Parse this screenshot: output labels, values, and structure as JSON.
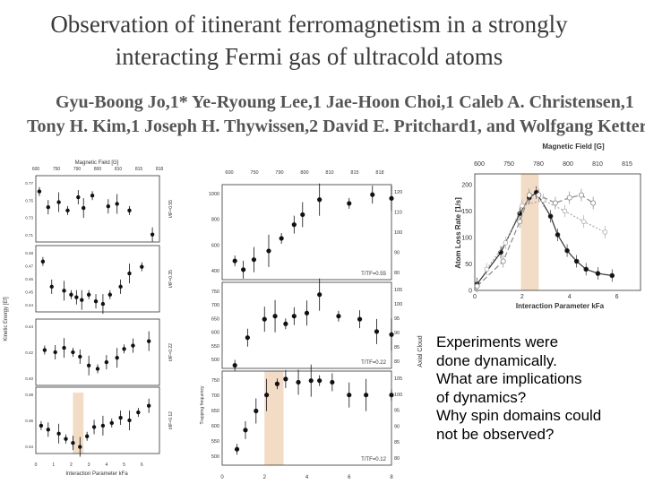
{
  "paper": {
    "title_line1": "Observation of itinerant ferromagnetism in a strongly",
    "title_line2": "interacting Fermi gas of ultracold atoms",
    "authors_line1": "Gyu-Boong Jo,1* Ye-Ryoung Lee,1 Jae-Hoon Choi,1 Caleb A. Christensen,1",
    "authors_line2": "Tony H. Kim,1 Joseph H. Thywissen,2 David E. Pritchard1, and Wolfgang Ketterle,1"
  },
  "notes": {
    "lines": [
      "Experiments were",
      "done dynamically.",
      "What are implications",
      "of dynamics?",
      "Why spin domains could",
      "not be observed?"
    ]
  },
  "colors": {
    "shade": "#f3dcc5",
    "marker": "#111111"
  },
  "chart_data": [
    {
      "type": "scatter",
      "name": "kinetic-energy-panels",
      "top_axis_label": "Magnetic Field [G]",
      "top_ticks": [
        "600",
        "750",
        "790",
        "800",
        "810",
        "815",
        "818"
      ],
      "ylabel": "Kinetic Energy [Ef]",
      "xlabel": "Interaction Parameter kFa",
      "x_ticks": [
        "0",
        "1",
        "2",
        "3",
        "4",
        "5",
        "6"
      ],
      "xlim": [
        0,
        7
      ],
      "panels": [
        {
          "label": "t/tF=0.55",
          "y_ticks": [
            "0.77",
            "0.75",
            "0.73",
            "0.71"
          ],
          "ylim": [
            0.7,
            0.78
          ],
          "x": [
            0.2,
            0.7,
            1.3,
            1.8,
            2.4,
            2.7,
            3.2,
            4.1,
            4.6,
            5.3,
            6.6
          ],
          "y": [
            0.761,
            0.742,
            0.748,
            0.738,
            0.754,
            0.741,
            0.756,
            0.743,
            0.746,
            0.738,
            0.709
          ]
        },
        {
          "label": "t/tF=0.35",
          "y_ticks": [
            "0.48",
            "0.47",
            "0.46",
            "0.45",
            "0.44"
          ],
          "ylim": [
            0.436,
            0.486
          ],
          "x": [
            0.4,
            0.9,
            1.6,
            2.0,
            2.3,
            2.6,
            3.0,
            3.4,
            3.8,
            4.2,
            4.8,
            5.3,
            6.0
          ],
          "y": [
            0.474,
            0.455,
            0.452,
            0.449,
            0.447,
            0.445,
            0.449,
            0.444,
            0.442,
            0.449,
            0.455,
            0.465,
            0.47
          ]
        },
        {
          "label": "t/tF=0.22",
          "y_ticks": [
            "0.44",
            "0.42",
            "0.40"
          ],
          "ylim": [
            0.39,
            0.45
          ],
          "x": [
            0.5,
            1.1,
            1.6,
            2.1,
            2.5,
            3.0,
            3.5,
            4.0,
            4.6,
            5.0,
            5.5,
            6.4
          ],
          "y": [
            0.422,
            0.42,
            0.424,
            0.42,
            0.416,
            0.408,
            0.405,
            0.411,
            0.415,
            0.423,
            0.426,
            0.43
          ]
        },
        {
          "label": "t/tF=0.12",
          "y_ticks": [
            "0.38",
            "0.36",
            "0.34"
          ],
          "ylim": [
            0.335,
            0.385
          ],
          "x": [
            0.3,
            0.7,
            1.3,
            1.7,
            2.1,
            2.5,
            2.9,
            3.3,
            3.8,
            4.3,
            4.8,
            5.3,
            5.8,
            6.4
          ],
          "y": [
            0.356,
            0.353,
            0.35,
            0.346,
            0.343,
            0.34,
            0.348,
            0.355,
            0.356,
            0.358,
            0.362,
            0.36,
            0.366,
            0.371
          ]
        }
      ]
    },
    {
      "type": "scatter",
      "name": "axial-cloud-panels",
      "top_ticks": [
        "600",
        "750",
        "790",
        "800",
        "810",
        "815",
        "818"
      ],
      "ylabel_left": "Trapping frequency",
      "ylabel_right": "Axial Cloud",
      "x_ticks": [
        "0",
        "2",
        "4",
        "6",
        "8"
      ],
      "xlim": [
        0,
        8
      ],
      "panels": [
        {
          "label": "T/TF=0.55",
          "left_ticks": [
            "1000",
            "800",
            "600",
            "400"
          ],
          "right_ticks": [
            "120",
            "110",
            "100",
            "90",
            "80"
          ],
          "ylim": [
            320,
            1080
          ],
          "x": [
            0.6,
            1.0,
            1.5,
            2.2,
            2.8,
            3.4,
            3.8,
            4.6,
            6.0,
            7.1,
            8.0
          ],
          "y": [
            470,
            400,
            480,
            550,
            650,
            760,
            840,
            960,
            930,
            1000,
            970
          ]
        },
        {
          "label": "T/TF=0.22",
          "left_ticks": [
            "750",
            "700",
            "650",
            "600",
            "550",
            "500"
          ],
          "right_ticks": [
            "105",
            "100",
            "95",
            "90",
            "85",
            "80"
          ],
          "ylim": [
            480,
            760
          ],
          "x": [
            0.6,
            1.2,
            2.0,
            2.5,
            3.0,
            3.4,
            4.0,
            4.6,
            5.5,
            6.5,
            7.3,
            8.0
          ],
          "y": [
            490,
            580,
            640,
            650,
            625,
            650,
            660,
            720,
            650,
            640,
            600,
            590
          ]
        },
        {
          "label": "T/TF=0.12",
          "left_ticks": [
            "750",
            "700",
            "650",
            "600",
            "550",
            "500"
          ],
          "right_ticks": [
            "105",
            "100",
            "95",
            "90",
            "85",
            "80"
          ],
          "ylim": [
            480,
            775
          ],
          "x": [
            0.7,
            1.1,
            1.6,
            2.1,
            2.6,
            3.0,
            3.6,
            4.2,
            4.6,
            5.2,
            6.0,
            6.8,
            8.0
          ],
          "y": [
            530,
            590,
            650,
            700,
            735,
            750,
            740,
            745,
            745,
            740,
            700,
            700,
            700
          ]
        }
      ]
    },
    {
      "type": "line",
      "name": "atom-loss-rate",
      "top_axis_label": "Magnetic Field [G]",
      "top_ticks": [
        "600",
        "750",
        "780",
        "800",
        "810",
        "815"
      ],
      "xlabel": "Interaction Parameter kFa",
      "ylabel": "Atom Loss Rate [1/s]",
      "x_ticks": [
        "0",
        "2",
        "4",
        "6"
      ],
      "y_ticks": [
        "0",
        "50",
        "100",
        "150",
        "200"
      ],
      "xlim": [
        0,
        7
      ],
      "ylim": [
        0,
        220
      ],
      "series": [
        {
          "x": [
            0.1,
            1.1,
            1.9,
            2.3,
            2.6,
            3.2,
            3.5,
            3.9,
            4.3,
            4.7,
            5.2,
            5.8
          ],
          "y": [
            12,
            72,
            145,
            175,
            185,
            140,
            105,
            75,
            55,
            40,
            32,
            28
          ]
        },
        {
          "x": [
            0.1,
            1.2,
            1.9,
            2.3,
            2.7,
            3.4,
            4.0,
            4.5,
            5.0
          ],
          "y": [
            8,
            55,
            130,
            180,
            180,
            165,
            175,
            180,
            165
          ]
        },
        {
          "x": [
            0.5,
            1.3,
            2.0,
            2.9,
            3.8,
            4.6,
            5.5
          ],
          "y": [
            40,
            90,
            160,
            170,
            150,
            130,
            110
          ]
        }
      ]
    }
  ]
}
